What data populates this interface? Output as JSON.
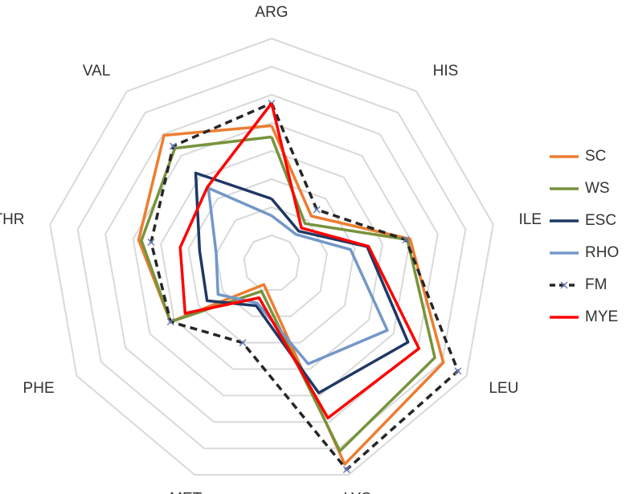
{
  "chart_data": {
    "type": "radar",
    "categories": [
      "ARG",
      "HIS",
      "ILE",
      "LEU",
      "LYS",
      "MET",
      "PHE",
      "THR",
      "VAL"
    ],
    "ylim": [
      0,
      8
    ],
    "yticks": [
      1,
      2,
      3,
      4,
      5,
      6,
      7,
      8
    ],
    "grid": true,
    "legend": "right",
    "series": [
      {
        "name": "SC",
        "color": "#ed7d31",
        "dash": false,
        "marker": false,
        "values": [
          4.9,
          2.2,
          5.0,
          7.05,
          7.6,
          0.8,
          4.15,
          4.8,
          5.95
        ]
      },
      {
        "name": "WS",
        "color": "#77933c",
        "dash": false,
        "marker": false,
        "values": [
          4.5,
          1.85,
          4.9,
          6.7,
          7.1,
          1.05,
          4.15,
          4.7,
          5.35
        ]
      },
      {
        "name": "ESC",
        "color": "#1f3864",
        "dash": false,
        "marker": false,
        "values": [
          2.3,
          1.5,
          3.45,
          5.6,
          4.9,
          1.6,
          2.65,
          2.6,
          4.2
        ]
      },
      {
        "name": "RHO",
        "color": "#7397c8",
        "dash": false,
        "marker": false,
        "values": [
          1.7,
          1.35,
          2.85,
          4.75,
          3.8,
          1.5,
          2.2,
          2.0,
          3.5
        ]
      },
      {
        "name": "FM",
        "color": "#262626",
        "dash": true,
        "marker": true,
        "values": [
          5.7,
          2.5,
          4.85,
          7.65,
          7.8,
          3.0,
          4.15,
          4.35,
          5.45
        ]
      },
      {
        "name": "MYE",
        "color": "#ff0000",
        "dash": false,
        "marker": false,
        "values": [
          5.7,
          1.65,
          3.5,
          6.05,
          5.85,
          1.3,
          3.55,
          3.3,
          3.55
        ]
      }
    ]
  }
}
